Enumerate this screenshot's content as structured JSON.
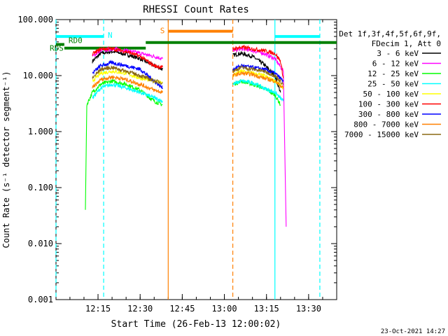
{
  "chart_data": {
    "type": "line",
    "title": "RHESSI Count Rates",
    "xlabel": "Start Time (26-Feb-13 12:00:02)",
    "ylabel": "Count Rate (s⁻¹ detector segment⁻¹)",
    "yscale": "log",
    "ylim": [
      0.001,
      100
    ],
    "xlim": [
      "12:00:02",
      "13:40:00"
    ],
    "y_ticks": [
      "0.001",
      "0.010",
      "0.100",
      "1.000",
      "10.000",
      "100.000"
    ],
    "x_ticks": [
      "12:15",
      "12:30",
      "12:45",
      "13:00",
      "13:15",
      "13:30"
    ],
    "legend": {
      "header": [
        "Det 1f,3f,4f,5f,6f,9f,",
        "FDecim 1, Att 0"
      ],
      "placement": "right"
    },
    "footer": "23-Oct-2021 14:27",
    "series": [
      {
        "name": "3 - 6 keV",
        "color": "#000000",
        "segments": [
          {
            "x": [
              "12:13",
              "12:16",
              "12:20",
              "12:25",
              "12:30",
              "12:35",
              "12:38"
            ],
            "y": [
              18,
              25,
              27,
              24,
              20,
              15,
              13
            ]
          },
          {
            "x": [
              "13:03",
              "13:06",
              "13:10",
              "13:14",
              "13:18",
              "13:20"
            ],
            "y": [
              23,
              25,
              22,
              16,
              10,
              5
            ]
          }
        ]
      },
      {
        "name": "6 - 12 keV",
        "color": "#ff00ff",
        "segments": [
          {
            "x": [
              "12:13",
              "12:16",
              "12:20",
              "12:25",
              "12:30",
              "12:35",
              "12:38"
            ],
            "y": [
              22,
              28,
              30,
              28,
              25,
              22,
              20
            ]
          },
          {
            "x": [
              "13:03",
              "13:06",
              "13:10",
              "13:14",
              "13:18",
              "13:21",
              "13:22"
            ],
            "y": [
              28,
              30,
              28,
              25,
              20,
              12,
              0.02
            ]
          }
        ]
      },
      {
        "name": "12 - 25 keV",
        "color": "#00ff00",
        "segments": [
          {
            "x": [
              "12:10.5",
              "12:11",
              "12:13",
              "12:16",
              "12:20",
              "12:25",
              "12:30",
              "12:35",
              "12:38"
            ],
            "y": [
              0.04,
              3,
              5,
              7,
              8,
              7,
              5.5,
              3.5,
              3
            ]
          },
          {
            "x": [
              "13:03",
              "13:06",
              "13:10",
              "13:14",
              "13:18",
              "13:20"
            ],
            "y": [
              7,
              8,
              7,
              6,
              4.5,
              3
            ]
          }
        ]
      },
      {
        "name": "25 - 50 keV",
        "color": "#00ffff",
        "segments": [
          {
            "x": [
              "12:13",
              "12:16",
              "12:20",
              "12:25",
              "12:30",
              "12:35",
              "12:38"
            ],
            "y": [
              4,
              6,
              7,
              6,
              5,
              4,
              3.5
            ]
          },
          {
            "x": [
              "13:03",
              "13:06",
              "13:10",
              "13:14",
              "13:18",
              "13:21"
            ],
            "y": [
              7,
              8,
              7.5,
              6,
              5,
              3.5
            ]
          }
        ]
      },
      {
        "name": "50 - 100 keV",
        "color": "#ffff00",
        "segments": [
          {
            "x": [
              "12:13",
              "12:16",
              "12:20",
              "12:25",
              "12:30",
              "12:35",
              "12:38"
            ],
            "y": [
              8,
              11,
              12,
              11,
              9,
              8,
              7.5
            ]
          },
          {
            "x": [
              "13:03",
              "13:06",
              "13:10",
              "13:14",
              "13:18",
              "13:21"
            ],
            "y": [
              10,
              12,
              11,
              10,
              8,
              6
            ]
          }
        ]
      },
      {
        "name": "100 - 300 keV",
        "color": "#ff0000",
        "segments": [
          {
            "x": [
              "12:13",
              "12:16",
              "12:20",
              "12:25",
              "12:30",
              "12:35",
              "12:38"
            ],
            "y": [
              24,
              30,
              30,
              27,
              22,
              15,
              14
            ]
          },
          {
            "x": [
              "13:03",
              "13:06",
              "13:10",
              "13:14",
              "13:18",
              "13:20",
              "13:21"
            ],
            "y": [
              30,
              32,
              30,
              28,
              25,
              18,
              9
            ]
          }
        ]
      },
      {
        "name": "300 - 800 keV",
        "color": "#0000ff",
        "segments": [
          {
            "x": [
              "12:13",
              "12:16",
              "12:20",
              "12:25",
              "12:30",
              "12:35",
              "12:38"
            ],
            "y": [
              11,
              15,
              17,
              15,
              13,
              8,
              6
            ]
          },
          {
            "x": [
              "13:03",
              "13:06",
              "13:10",
              "13:14",
              "13:18",
              "13:21"
            ],
            "y": [
              13,
              15,
              14,
              13,
              11,
              8
            ]
          }
        ]
      },
      {
        "name": "800 - 7000 keV",
        "color": "#ff8000",
        "segments": [
          {
            "x": [
              "12:13",
              "12:16",
              "12:20",
              "12:25",
              "12:30",
              "12:35",
              "12:38"
            ],
            "y": [
              6,
              8.5,
              9.5,
              8.5,
              7,
              5.5,
              5
            ]
          },
          {
            "x": [
              "13:03",
              "13:06",
              "13:10",
              "13:14",
              "13:18",
              "13:21"
            ],
            "y": [
              10,
              11,
              10.5,
              9,
              8,
              6
            ]
          }
        ]
      },
      {
        "name": "7000 - 15000 keV",
        "color": "#8b6914",
        "segments": [
          {
            "x": [
              "12:13",
              "12:16",
              "12:20",
              "12:25",
              "12:30",
              "12:35",
              "12:38"
            ],
            "y": [
              9,
              13,
              14,
              12,
              10,
              8,
              7.5
            ]
          },
          {
            "x": [
              "13:03",
              "13:06",
              "13:10",
              "13:14",
              "13:18",
              "13:21"
            ],
            "y": [
              12,
              14,
              13,
              12,
              10,
              7
            ]
          }
        ]
      }
    ],
    "annotations": {
      "vlines": [
        {
          "x": "12:00:02",
          "color": "#00ffff",
          "style": "dashed"
        },
        {
          "x": "12:17",
          "color": "#00ffff",
          "style": "dashed"
        },
        {
          "x": "12:40",
          "color": "#ff8000",
          "style": "solid"
        },
        {
          "x": "13:03",
          "color": "#ff8000",
          "style": "dashed"
        },
        {
          "x": "13:18",
          "color": "#00ffff",
          "style": "solid"
        },
        {
          "x": "13:34",
          "color": "#00ffff",
          "style": "dashed"
        }
      ],
      "bars": [
        {
          "label": "N",
          "color": "#00ffff",
          "x1": "12:00:02",
          "x2": "12:17",
          "y": 50
        },
        {
          "label": "",
          "color": "#00ffff",
          "x1": "13:18",
          "x2": "13:34",
          "y": 50
        },
        {
          "label": "S",
          "color": "#ff8000",
          "x1": "12:40",
          "x2": "13:03",
          "y": 62
        },
        {
          "label": "RD0",
          "color": "#008000",
          "x1": "12:00:02",
          "x2": "12:03",
          "y": 36
        },
        {
          "label": "RDS",
          "color": "#008000",
          "x1": "12:03",
          "x2": "12:32",
          "y": 31
        },
        {
          "label": "",
          "color": "#008000",
          "x1": "12:32",
          "x2": "13:18",
          "y": 39
        },
        {
          "label": "",
          "color": "#008000",
          "x1": "13:18",
          "x2": "13:40",
          "y": 39
        }
      ]
    }
  }
}
